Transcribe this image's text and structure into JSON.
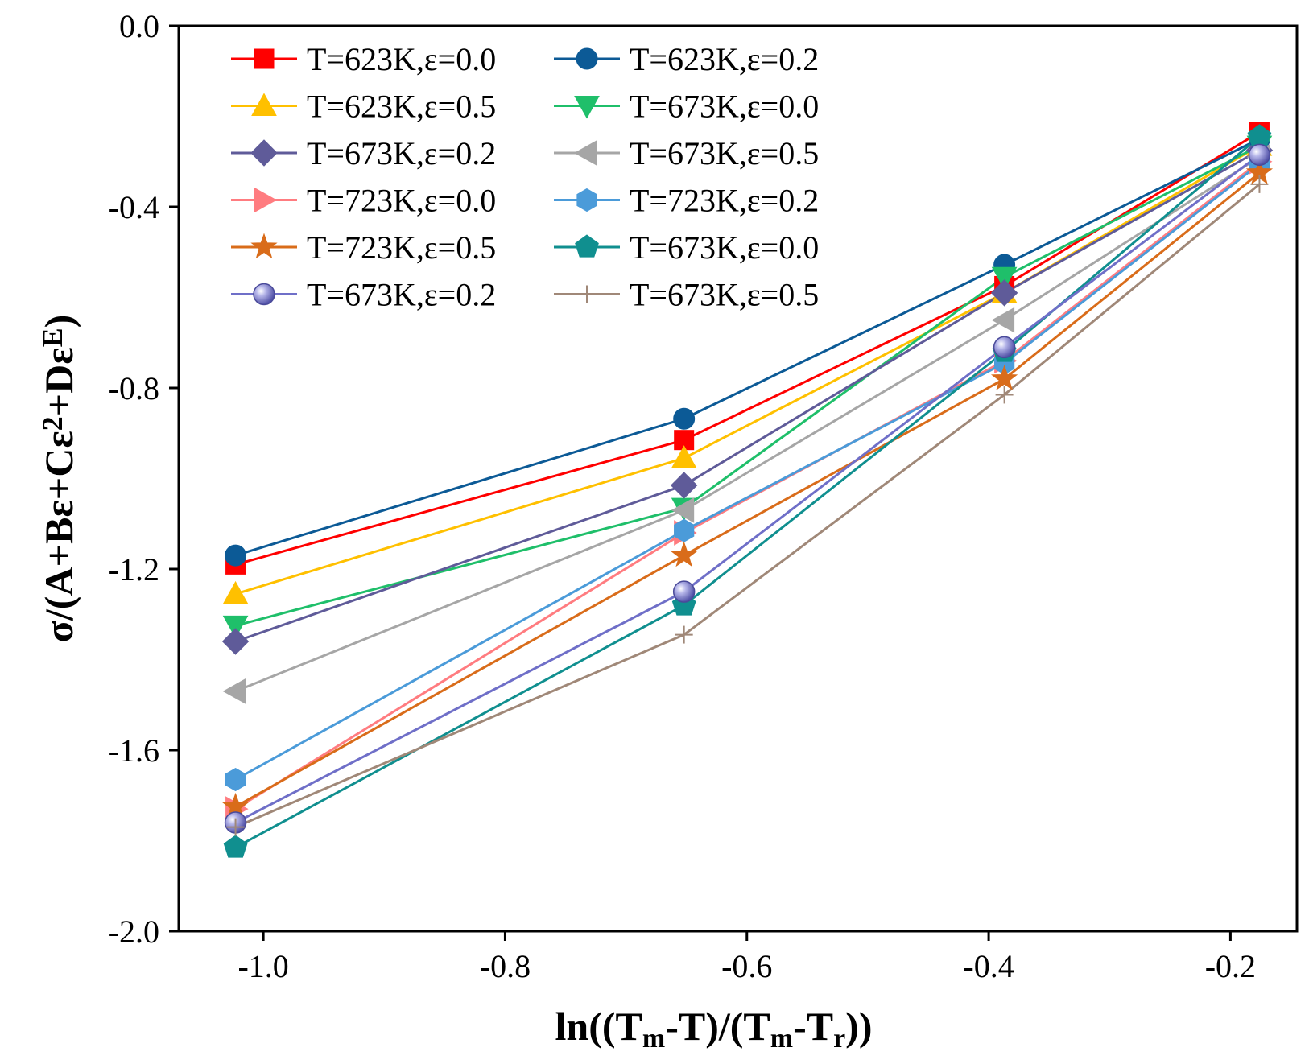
{
  "chart_data": {
    "type": "line",
    "title": "",
    "xlabel": {
      "parts": [
        {
          "t": "ln((T",
          "style": "normal"
        },
        {
          "t": "m",
          "style": "sub"
        },
        {
          "t": "-T)/(T",
          "style": "normal"
        },
        {
          "t": "m",
          "style": "sub"
        },
        {
          "t": "-T",
          "style": "normal"
        },
        {
          "t": "r",
          "style": "sub"
        },
        {
          "t": "))",
          "style": "normal"
        }
      ]
    },
    "ylabel": {
      "parts": [
        {
          "t": "σ/(A+Bε+Cε",
          "style": "normal"
        },
        {
          "t": "2",
          "style": "sup"
        },
        {
          "t": "+Dε",
          "style": "normal"
        },
        {
          "t": "E",
          "style": "sup"
        },
        {
          "t": ")",
          "style": "normal"
        }
      ]
    },
    "xlim": [
      -1.07,
      -0.145
    ],
    "ylim": [
      -2.0,
      0.0
    ],
    "xticks": [
      -1.0,
      -0.8,
      -0.6,
      -0.4,
      -0.2
    ],
    "xtick_labels": [
      "-1.0",
      "-0.8",
      "-0.6",
      "-0.4",
      "-0.2"
    ],
    "yticks": [
      0.0,
      -0.4,
      -0.8,
      -1.2,
      -1.6,
      -2.0
    ],
    "ytick_labels": [
      "0.0",
      "-0.4",
      "-0.8",
      "-1.2",
      "-1.6",
      "-2.0"
    ],
    "grid": false,
    "legend_position": "top-left",
    "x": [
      -1.023,
      -0.652,
      -0.387,
      -0.176
    ],
    "series": [
      {
        "name": "T=623K,ε=0.0",
        "color": "#ff0000",
        "marker": "square",
        "values": [
          -1.19,
          -0.915,
          -0.575,
          -0.235
        ]
      },
      {
        "name": "T=623K,ε=0.2",
        "color": "#0c5a96",
        "marker": "circle",
        "values": [
          -1.17,
          -0.868,
          -0.528,
          -0.25
        ]
      },
      {
        "name": "T=623K,ε=0.5",
        "color": "#ffc000",
        "marker": "triangle-up",
        "values": [
          -1.255,
          -0.955,
          -0.59,
          -0.265
        ]
      },
      {
        "name": "T=673K,ε=0.0",
        "color": "#1fbf6a",
        "marker": "triangle-down",
        "values": [
          -1.325,
          -1.065,
          -0.555,
          -0.265
        ]
      },
      {
        "name": "T=673K,ε=0.2",
        "color": "#5f5b99",
        "marker": "diamond",
        "values": [
          -1.36,
          -1.015,
          -0.59,
          -0.275
        ]
      },
      {
        "name": "T=673K,ε=0.5",
        "color": "#a6a6a6",
        "marker": "triangle-left",
        "values": [
          -1.47,
          -1.07,
          -0.65,
          -0.29
        ]
      },
      {
        "name": "T=723K,ε=0.0",
        "color": "#ff7c80",
        "marker": "triangle-right",
        "values": [
          -1.73,
          -1.12,
          -0.74,
          -0.3
        ]
      },
      {
        "name": "T=723K,ε=0.2",
        "color": "#4b9bd9",
        "marker": "hexagon",
        "values": [
          -1.665,
          -1.115,
          -0.745,
          -0.305
        ]
      },
      {
        "name": "T=723K,ε=0.5",
        "color": "#d96c1a",
        "marker": "star",
        "values": [
          -1.725,
          -1.17,
          -0.78,
          -0.325
        ]
      },
      {
        "name": "T=673K,ε=0.0",
        "color": "#108f8f",
        "marker": "pentagon",
        "values": [
          -1.815,
          -1.28,
          -0.72,
          -0.245
        ]
      },
      {
        "name": "T=673K,ε=0.2",
        "color": "#6f6fc8",
        "marker": "sphere",
        "values": [
          -1.76,
          -1.25,
          -0.71,
          -0.285
        ]
      },
      {
        "name": "T=673K,ε=0.5",
        "color": "#a08878",
        "marker": "plus",
        "values": [
          -1.77,
          -1.345,
          -0.815,
          -0.35
        ]
      }
    ]
  }
}
